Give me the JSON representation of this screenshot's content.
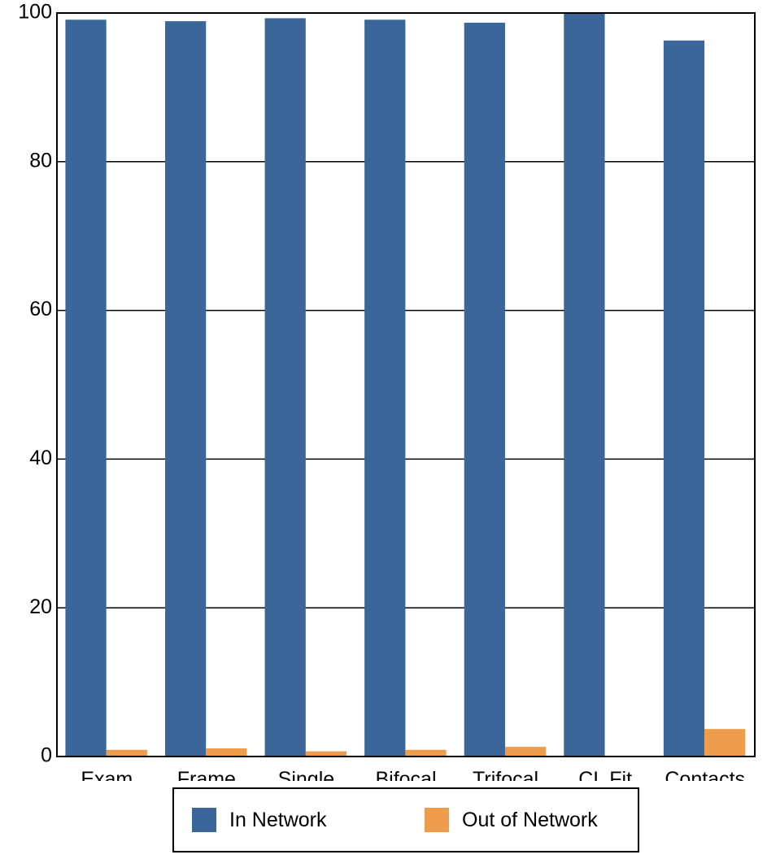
{
  "chart_data": {
    "type": "bar",
    "title": "",
    "xlabel": "",
    "ylabel": "",
    "ylim": [
      0,
      100
    ],
    "yticks": [
      0,
      20,
      40,
      60,
      80,
      100
    ],
    "grid": true,
    "legend_position": "bottom",
    "categories": [
      "Exam",
      "Frame",
      "Single",
      "Bifocal",
      "Trifocal",
      "CL Fit",
      "Contacts"
    ],
    "series": [
      {
        "name": "In Network",
        "color": "#3b6699",
        "values": [
          99.1,
          98.9,
          99.3,
          99.1,
          98.7,
          100,
          96.3
        ]
      },
      {
        "name": "Out of Network",
        "color": "#ee9d4c",
        "values": [
          0.9,
          1.1,
          0.7,
          0.9,
          1.3,
          0,
          3.7
        ]
      }
    ]
  }
}
